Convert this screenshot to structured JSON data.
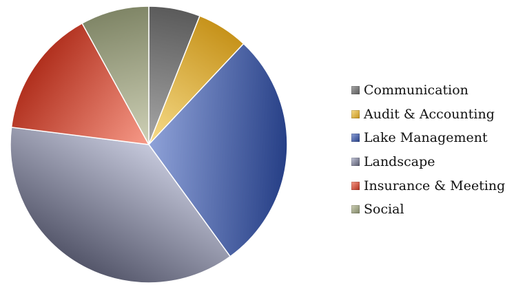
{
  "chart_data": {
    "type": "pie",
    "title": "",
    "legend_position": "right",
    "slices": [
      {
        "label": "Communication",
        "value": 6,
        "color_light": "#a8a8a8",
        "color_dark": "#5a5a5a"
      },
      {
        "label": "Audit & Accounting",
        "value": 6,
        "color_light": "#f7dc8a",
        "color_dark": "#c6921a"
      },
      {
        "label": "Lake Management",
        "value": 28,
        "color_light": "#8fa2d8",
        "color_dark": "#263f86"
      },
      {
        "label": "Landscape",
        "value": 37,
        "color_light": "#c5c8db",
        "color_dark": "#54566a"
      },
      {
        "label": "Insurance & Meeting",
        "value": 15,
        "color_light": "#f79a88",
        "color_dark": "#b02f1d"
      },
      {
        "label": "Social",
        "value": 8,
        "color_light": "#cfd1b7",
        "color_dark": "#7f8566"
      }
    ]
  }
}
